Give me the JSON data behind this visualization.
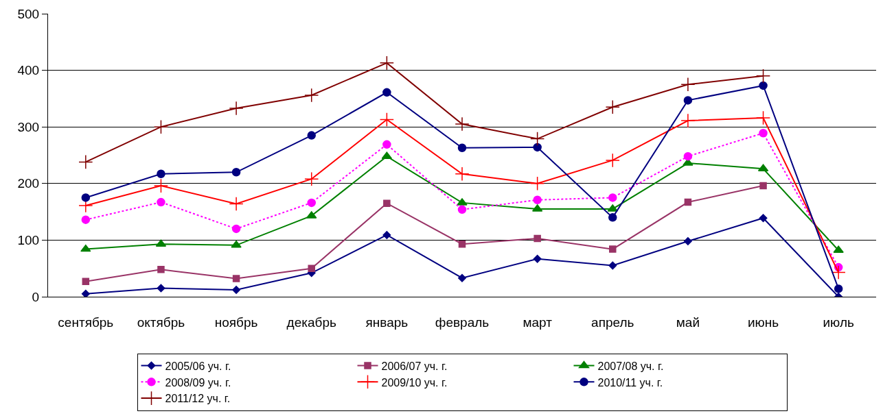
{
  "chart_data": {
    "type": "line",
    "categories": [
      "сентябрь",
      "октябрь",
      "ноябрь",
      "декабрь",
      "январь",
      "февраль",
      "март",
      "апрель",
      "май",
      "июнь",
      "июль"
    ],
    "series": [
      {
        "name": "2005/06 уч. г.",
        "color": "#000080",
        "marker": "diamond",
        "values": [
          5,
          15,
          12,
          42,
          109,
          33,
          67,
          55,
          98,
          139,
          0
        ]
      },
      {
        "name": "2006/07 уч. г.",
        "color": "#993366",
        "marker": "square",
        "values": [
          27,
          48,
          32,
          50,
          165,
          93,
          103,
          84,
          167,
          196,
          null
        ]
      },
      {
        "name": "2007/08 уч. г.",
        "color": "#008000",
        "marker": "triangle",
        "values": [
          84,
          93,
          91,
          143,
          248,
          166,
          155,
          155,
          236,
          226,
          82
        ]
      },
      {
        "name": "2008/09 уч. г.",
        "color": "#ff00ff",
        "marker": "circle",
        "line_style": "dotted",
        "values": [
          136,
          167,
          120,
          166,
          269,
          154,
          171,
          175,
          248,
          289,
          52
        ]
      },
      {
        "name": "2009/10 уч. г.",
        "color": "#ff0000",
        "marker": "cross",
        "values": [
          161,
          196,
          164,
          208,
          313,
          217,
          200,
          241,
          311,
          316,
          43
        ]
      },
      {
        "name": "2010/11 уч. г.",
        "color": "#000080",
        "marker": "circle",
        "values": [
          175,
          217,
          220,
          285,
          361,
          263,
          264,
          140,
          347,
          373,
          14
        ]
      },
      {
        "name": "2011/12 уч. г.",
        "color": "#800000",
        "marker": "cross",
        "values": [
          238,
          300,
          333,
          356,
          413,
          305,
          279,
          335,
          375,
          390,
          null
        ]
      }
    ],
    "ylim": [
      0,
      500
    ],
    "yticks": [
      0,
      100,
      200,
      300,
      400,
      500
    ],
    "grid": "y",
    "legend": "bottom",
    "line_style": "solid"
  }
}
